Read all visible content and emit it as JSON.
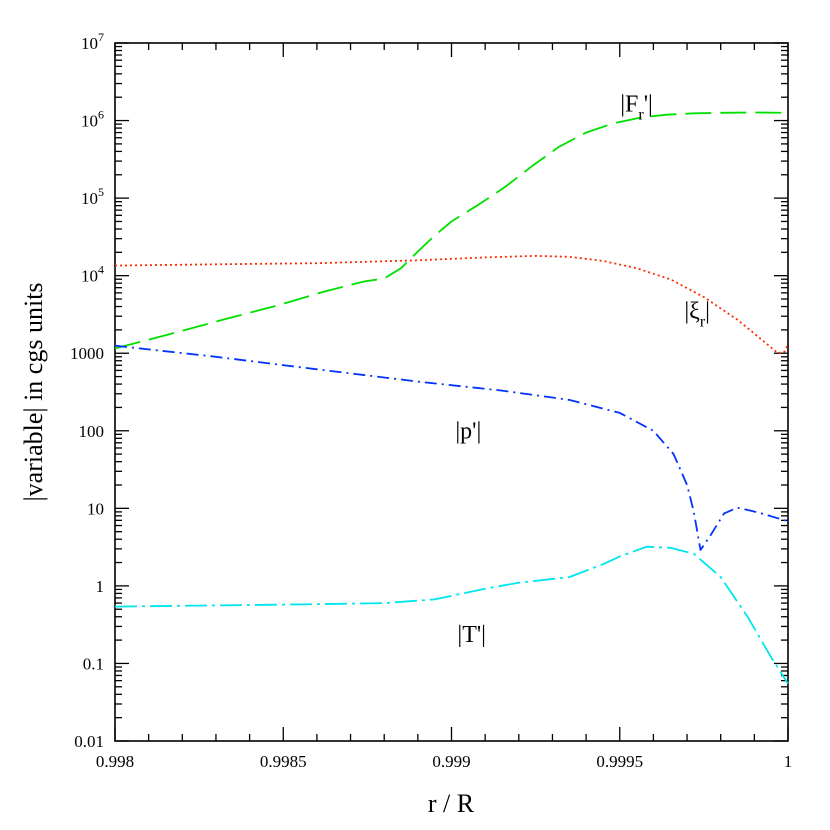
{
  "chart_data": {
    "type": "line",
    "title": "",
    "xlabel": "r / R",
    "ylabel": "|variable| in cgs units",
    "xlim": [
      0.998,
      1.0
    ],
    "ylim": [
      0.01,
      10000000
    ],
    "yscale": "log",
    "grid": false,
    "x_ticks": [
      {
        "value": 0.998,
        "label": "0.998"
      },
      {
        "value": 0.9985,
        "label": "0.9985"
      },
      {
        "value": 0.999,
        "label": "0.999"
      },
      {
        "value": 0.9995,
        "label": "0.9995"
      },
      {
        "value": 1.0,
        "label": "1"
      }
    ],
    "y_ticks": [
      {
        "value": 0.01,
        "label": "0.01"
      },
      {
        "value": 0.1,
        "label": "0.1"
      },
      {
        "value": 1,
        "label": "1"
      },
      {
        "value": 10,
        "label": "10"
      },
      {
        "value": 100,
        "label": "100"
      },
      {
        "value": 1000,
        "label": "1000"
      },
      {
        "value": 10000,
        "base": "10",
        "exp": "4"
      },
      {
        "value": 100000,
        "base": "10",
        "exp": "5"
      },
      {
        "value": 1000000,
        "base": "10",
        "exp": "6"
      },
      {
        "value": 10000000,
        "base": "10",
        "exp": "7"
      }
    ],
    "series": [
      {
        "name": "|F_r'|",
        "label": {
          "text": "|F",
          "sub": "r",
          "tail": "'|",
          "x": 0.99955,
          "y": 1300000
        },
        "color": "#00e000",
        "dash": "long-dash",
        "points": [
          [
            0.998,
            1150
          ],
          [
            0.99816,
            1750
          ],
          [
            0.99832,
            2700
          ],
          [
            0.99848,
            4100
          ],
          [
            0.99862,
            6200
          ],
          [
            0.99874,
            8400
          ],
          [
            0.9988,
            9200
          ],
          [
            0.99885,
            12500
          ],
          [
            0.9989,
            20500
          ],
          [
            0.99895,
            33000
          ],
          [
            0.999,
            50000
          ],
          [
            0.99908,
            82000
          ],
          [
            0.99916,
            140000
          ],
          [
            0.99924,
            260000
          ],
          [
            0.99932,
            460000
          ],
          [
            0.9994,
            700000
          ],
          [
            0.99948,
            920000
          ],
          [
            0.99956,
            1090000
          ],
          [
            0.99964,
            1190000
          ],
          [
            0.99972,
            1240000
          ],
          [
            0.9998,
            1260000
          ],
          [
            0.9999,
            1270000
          ],
          [
            1.0,
            1260000
          ]
        ]
      },
      {
        "name": "|ξ_r|",
        "label": {
          "text": "|ξ",
          "sub": "r",
          "tail": "|",
          "x": 0.99973,
          "y": 2800
        },
        "color": "#ff2a00",
        "dash": "dotted",
        "points": [
          [
            0.998,
            13500
          ],
          [
            0.9983,
            14000
          ],
          [
            0.9986,
            14500
          ],
          [
            0.9989,
            15800
          ],
          [
            0.9991,
            17200
          ],
          [
            0.99925,
            18000
          ],
          [
            0.99935,
            17500
          ],
          [
            0.99945,
            15500
          ],
          [
            0.99955,
            12500
          ],
          [
            0.99965,
            9000
          ],
          [
            0.99975,
            5300
          ],
          [
            0.99985,
            2700
          ],
          [
            0.99993,
            1400
          ],
          [
            0.99997,
            1000
          ],
          [
            0.99999,
            1050
          ],
          [
            1.0,
            1300
          ]
        ]
      },
      {
        "name": "|p'|",
        "label": {
          "text": "|p'|",
          "x": 0.99905,
          "y": 80
        },
        "color": "#0033ff",
        "dash": "dash-dot",
        "points": [
          [
            0.998,
            1250
          ],
          [
            0.9983,
            900
          ],
          [
            0.9986,
            620
          ],
          [
            0.9989,
            430
          ],
          [
            0.99915,
            330
          ],
          [
            0.99935,
            250
          ],
          [
            0.9995,
            170
          ],
          [
            0.9996,
            100
          ],
          [
            0.99966,
            50
          ],
          [
            0.9997,
            20
          ],
          [
            0.99972,
            9
          ],
          [
            0.99974,
            2.9
          ],
          [
            0.99977,
            4.5
          ],
          [
            0.99981,
            8.6
          ],
          [
            0.99985,
            10.2
          ],
          [
            0.99991,
            8.9
          ],
          [
            1.0,
            6.8
          ]
        ]
      },
      {
        "name": "|T'|",
        "label": {
          "text": "|T'|",
          "x": 0.99906,
          "y": 0.19
        },
        "color": "#00e5ee",
        "dash": "long-dash-dot",
        "points": [
          [
            0.998,
            0.54
          ],
          [
            0.9983,
            0.56
          ],
          [
            0.9986,
            0.58
          ],
          [
            0.9988,
            0.6
          ],
          [
            0.99895,
            0.67
          ],
          [
            0.9991,
            0.92
          ],
          [
            0.9992,
            1.1
          ],
          [
            0.99935,
            1.3
          ],
          [
            0.99945,
            1.9
          ],
          [
            0.9995,
            2.4
          ],
          [
            0.99958,
            3.2
          ],
          [
            0.99965,
            3.1
          ],
          [
            0.99972,
            2.6
          ],
          [
            0.9998,
            1.3
          ],
          [
            0.99988,
            0.4
          ],
          [
            0.99995,
            0.12
          ],
          [
            1.0,
            0.055
          ]
        ]
      }
    ]
  }
}
